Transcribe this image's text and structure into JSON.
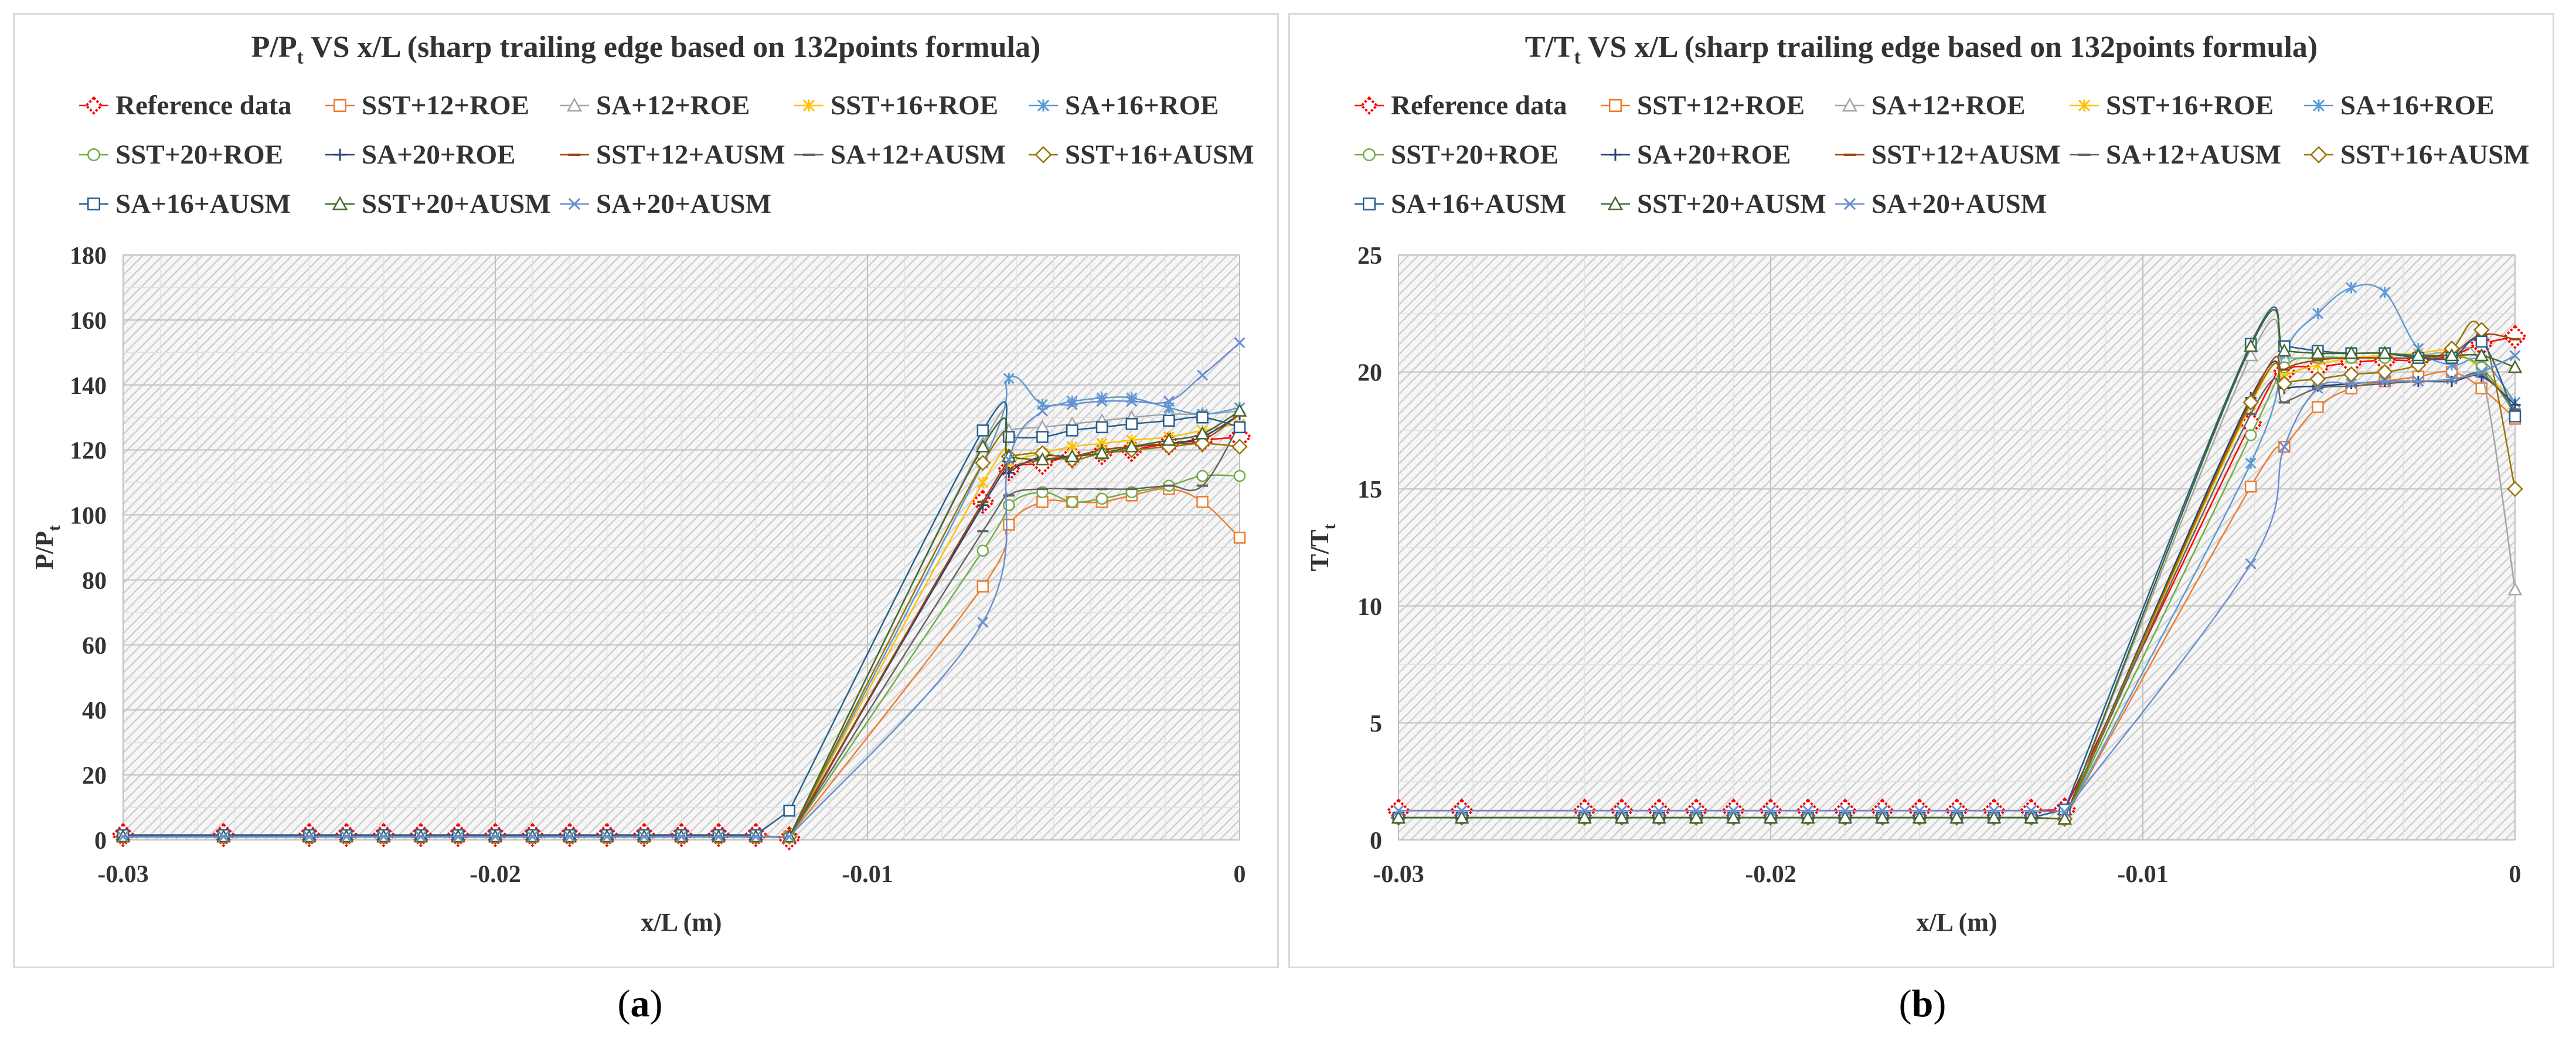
{
  "panels": [
    {
      "id": "a",
      "title_main": "P/P",
      "title_sub": "t",
      "title_rest": " VS x/L (sharp trailing edge based on 132points formula)",
      "caption_open": "(",
      "caption_letter": "a",
      "caption_close": ")"
    },
    {
      "id": "b",
      "title_main": "T/T",
      "title_sub": "t",
      "title_rest": " VS x/L (sharp trailing edge based on 132points formula)",
      "caption_open": "(",
      "caption_letter": "b",
      "caption_close": ")"
    }
  ],
  "legend": [
    {
      "name": "Reference data",
      "color": "#ff0000",
      "marker": "diamond-dotted"
    },
    {
      "name": "SST+12+ROE",
      "color": "#ed7d31",
      "marker": "square"
    },
    {
      "name": "SA+12+ROE",
      "color": "#a5a5a5",
      "marker": "triangle"
    },
    {
      "name": "SST+16+ROE",
      "color": "#ffc000",
      "marker": "star"
    },
    {
      "name": "SA+16+ROE",
      "color": "#5b9bd5",
      "marker": "asterisk"
    },
    {
      "name": "SST+20+ROE",
      "color": "#70ad47",
      "marker": "circle"
    },
    {
      "name": "SA+20+ROE",
      "color": "#264478",
      "marker": "plus"
    },
    {
      "name": "SST+12+AUSM",
      "color": "#9e480e",
      "marker": "dash"
    },
    {
      "name": "SA+12+AUSM",
      "color": "#636363",
      "marker": "dash"
    },
    {
      "name": "SST+16+AUSM",
      "color": "#997300",
      "marker": "diamond"
    },
    {
      "name": "SA+16+AUSM",
      "color": "#255e91",
      "marker": "square"
    },
    {
      "name": "SST+20+AUSM",
      "color": "#43682b",
      "marker": "triangle"
    },
    {
      "name": "SA+20+AUSM",
      "color": "#698ed0",
      "marker": "cross"
    }
  ],
  "chart_data": [
    {
      "type": "line",
      "title": "P/Pt VS x/L (sharp trailing edge based on 132points formula)",
      "xlabel": "x/L (m)",
      "ylabel_main": "P/P",
      "ylabel_sub": "t",
      "xlim": [
        -0.03,
        0
      ],
      "ylim": [
        0,
        180
      ],
      "xticks": [
        -0.03,
        -0.02,
        -0.01,
        0
      ],
      "xtick_labels": [
        "-0.03",
        "-0.02",
        "-0.01",
        "0"
      ],
      "yticks": [
        0,
        20,
        40,
        60,
        80,
        100,
        120,
        140,
        160,
        180
      ],
      "flat_x": [
        -0.03,
        -0.0273,
        -0.025,
        -0.024,
        -0.023,
        -0.022,
        -0.021,
        -0.02,
        -0.019,
        -0.018,
        -0.017,
        -0.016,
        -0.015,
        -0.014,
        -0.013,
        -0.0121
      ],
      "tail_x": [
        -0.0069,
        -0.0062,
        -0.0053,
        -0.0045,
        -0.0037,
        -0.0029,
        -0.0019,
        -0.001,
        0
      ],
      "series": [
        {
          "name": "Reference data",
          "flat": 1.5,
          "start_x": -0.0121,
          "start_y": 0.5,
          "tail": [
            104,
            114,
            116,
            118,
            119,
            120,
            122,
            123,
            124
          ]
        },
        {
          "name": "SST+12+ROE",
          "flat": 1.0,
          "start_x": -0.0121,
          "start_y": 1,
          "tail": [
            78,
            97,
            104,
            104,
            104,
            106,
            108,
            104,
            93
          ]
        },
        {
          "name": "SA+12+ROE",
          "flat": 1.0,
          "start_x": -0.0121,
          "start_y": 1,
          "tail": [
            122,
            126,
            127,
            128,
            129,
            130,
            131,
            131,
            132
          ]
        },
        {
          "name": "SST+16+ROE",
          "flat": 1.0,
          "start_x": -0.0121,
          "start_y": 1,
          "tail": [
            110,
            116,
            119,
            121,
            122,
            123,
            124,
            126,
            128
          ]
        },
        {
          "name": "SA+16+ROE",
          "flat": 1.0,
          "start_x": -0.0121,
          "start_y": 1,
          "tail": [
            116,
            142,
            134,
            135,
            136,
            136,
            133,
            131,
            133
          ]
        },
        {
          "name": "SST+20+ROE",
          "flat": 1.0,
          "start_x": -0.0121,
          "start_y": 1,
          "tail": [
            89,
            103,
            107,
            104,
            105,
            107,
            109,
            112,
            112
          ]
        },
        {
          "name": "SA+20+ROE",
          "flat": 1.0,
          "start_x": -0.0121,
          "start_y": 1,
          "tail": [
            103,
            113,
            118,
            118,
            120,
            121,
            122,
            124,
            131
          ]
        },
        {
          "name": "SST+12+AUSM",
          "flat": 1.0,
          "start_x": -0.0121,
          "start_y": 1,
          "tail": [
            104,
            114,
            117,
            118,
            120,
            121,
            122,
            123,
            131
          ]
        },
        {
          "name": "SA+12+AUSM",
          "flat": 1.0,
          "start_x": -0.0121,
          "start_y": 1,
          "tail": [
            95,
            106,
            108,
            108,
            108,
            108,
            109,
            109,
            128
          ]
        },
        {
          "name": "SST+16+AUSM",
          "flat": 1.0,
          "start_x": -0.0121,
          "start_y": 1,
          "tail": [
            116,
            118,
            119,
            117,
            119,
            120,
            121,
            122,
            121
          ]
        },
        {
          "name": "SA+16+AUSM",
          "flat": 1.5,
          "start_x": -0.0121,
          "start_y": 9,
          "tail": [
            126,
            124,
            124,
            126,
            127,
            128,
            129,
            130,
            127
          ]
        },
        {
          "name": "SST+20+AUSM",
          "flat": 1.0,
          "start_x": -0.0121,
          "start_y": 1,
          "tail": [
            121,
            118,
            117,
            118,
            119,
            121,
            123,
            125,
            132
          ]
        },
        {
          "name": "SA+20+AUSM",
          "flat": 1.0,
          "start_x": -0.0121,
          "start_y": 1,
          "tail": [
            67,
            117,
            132,
            134,
            135,
            135,
            135,
            143,
            153
          ]
        }
      ]
    },
    {
      "type": "line",
      "title": "T/Tt VS x/L (sharp trailing edge based on 132points formula)",
      "xlabel": "x/L (m)",
      "ylabel_main": "T/T",
      "ylabel_sub": "t",
      "xlim": [
        -0.03,
        0
      ],
      "ylim": [
        0,
        25
      ],
      "xticks": [
        -0.03,
        -0.02,
        -0.01,
        0
      ],
      "xtick_labels": [
        "-0.03",
        "-0.02",
        "-0.01",
        "0"
      ],
      "yticks": [
        0,
        5,
        10,
        15,
        20,
        25
      ],
      "flat_x": [
        -0.03,
        -0.0283,
        -0.025,
        -0.024,
        -0.023,
        -0.022,
        -0.021,
        -0.02,
        -0.019,
        -0.018,
        -0.017,
        -0.016,
        -0.015,
        -0.014,
        -0.013,
        -0.0121
      ],
      "tail_x": [
        -0.0071,
        -0.0062,
        -0.0053,
        -0.0044,
        -0.0035,
        -0.0026,
        -0.0017,
        -0.0009,
        0
      ],
      "series": [
        {
          "name": "Reference data",
          "flat": 1.25,
          "start_x": -0.0121,
          "start_y": 1.3,
          "tail": [
            17.8,
            20.0,
            20.2,
            20.4,
            20.5,
            20.5,
            20.7,
            21.2,
            21.5
          ]
        },
        {
          "name": "SST+12+ROE",
          "flat": 0.95,
          "start_x": -0.0121,
          "start_y": 0.9,
          "tail": [
            15.1,
            16.8,
            18.5,
            19.3,
            19.6,
            19.8,
            20.0,
            19.3,
            18.0
          ]
        },
        {
          "name": "SA+12+ROE",
          "flat": 0.95,
          "start_x": -0.0121,
          "start_y": 0.9,
          "tail": [
            20.7,
            20.6,
            20.6,
            20.6,
            20.7,
            20.7,
            20.8,
            20.0,
            10.7
          ]
        },
        {
          "name": "SST+16+ROE",
          "flat": 0.95,
          "start_x": -0.0121,
          "start_y": 0.9,
          "tail": [
            18.6,
            19.8,
            20.3,
            20.6,
            20.7,
            20.8,
            20.9,
            20.1,
            18.7
          ]
        },
        {
          "name": "SA+16+ROE",
          "flat": 0.95,
          "start_x": -0.0121,
          "start_y": 0.9,
          "tail": [
            16.1,
            20.8,
            22.5,
            23.6,
            23.4,
            21.0,
            20.3,
            20.5,
            18.7
          ]
        },
        {
          "name": "SST+20+ROE",
          "flat": 0.95,
          "start_x": -0.0121,
          "start_y": 0.9,
          "tail": [
            17.3,
            20.2,
            20.6,
            20.6,
            20.6,
            20.6,
            20.7,
            20.2,
            18.2
          ]
        },
        {
          "name": "SA+20+ROE",
          "flat": 0.95,
          "start_x": -0.0121,
          "start_y": 0.9,
          "tail": [
            18.9,
            19.3,
            19.4,
            19.5,
            19.6,
            19.6,
            19.6,
            19.8,
            18.6
          ]
        },
        {
          "name": "SST+12+AUSM",
          "flat": 0.95,
          "start_x": -0.0121,
          "start_y": 0.9,
          "tail": [
            18.8,
            20.1,
            20.5,
            20.6,
            20.6,
            20.6,
            20.8,
            21.6,
            21.4
          ]
        },
        {
          "name": "SA+12+AUSM",
          "flat": 0.95,
          "start_x": -0.0121,
          "start_y": 0.9,
          "tail": [
            18.2,
            18.7,
            19.3,
            19.4,
            19.5,
            19.6,
            19.6,
            19.9,
            18.4
          ]
        },
        {
          "name": "SST+16+AUSM",
          "flat": 0.95,
          "start_x": -0.0121,
          "start_y": 0.9,
          "tail": [
            18.7,
            19.5,
            19.7,
            19.9,
            20.0,
            20.3,
            21.0,
            21.8,
            15.0
          ]
        },
        {
          "name": "SA+16+AUSM",
          "flat": 0.95,
          "start_x": -0.0121,
          "start_y": 1.3,
          "tail": [
            21.2,
            21.1,
            20.9,
            20.8,
            20.8,
            20.6,
            20.6,
            21.3,
            18.1
          ]
        },
        {
          "name": "SST+20+AUSM",
          "flat": 0.95,
          "start_x": -0.0121,
          "start_y": 0.9,
          "tail": [
            21.1,
            20.9,
            20.8,
            20.8,
            20.8,
            20.7,
            20.7,
            20.7,
            20.2
          ]
        },
        {
          "name": "SA+20+AUSM",
          "flat": 1.25,
          "start_x": -0.0121,
          "start_y": 1.2,
          "tail": [
            11.8,
            16.8,
            19.3,
            19.5,
            19.6,
            19.6,
            19.7,
            20.0,
            20.7
          ]
        }
      ]
    }
  ]
}
